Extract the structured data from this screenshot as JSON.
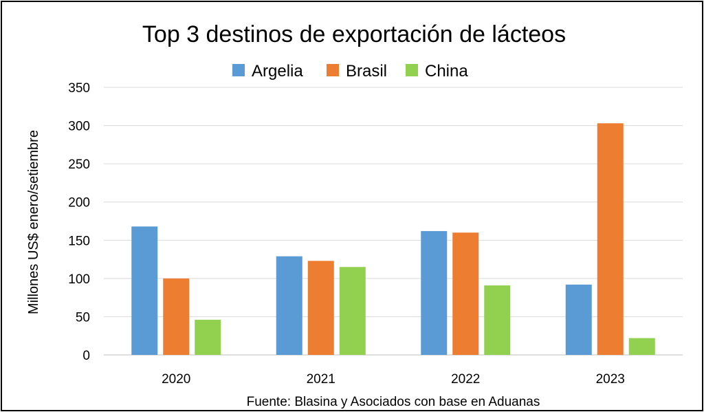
{
  "chart_data": {
    "type": "bar",
    "title": "Top 3 destinos de exportación de lácteos",
    "ylabel": "Millones US$ enero/setiembre",
    "xlabel": "",
    "ylim": [
      0,
      350
    ],
    "yticks": [
      0,
      50,
      100,
      150,
      200,
      250,
      300,
      350
    ],
    "grid": true,
    "legend_position": "top",
    "categories": [
      "2020",
      "2021",
      "2022",
      "2023"
    ],
    "series": [
      {
        "name": "Argelia",
        "color": "#5B9BD5",
        "values": [
          168,
          129,
          162,
          92
        ]
      },
      {
        "name": "Brasil",
        "color": "#ED7D31",
        "values": [
          100,
          123,
          160,
          303
        ]
      },
      {
        "name": "China",
        "color": "#92D050",
        "values": [
          46,
          115,
          91,
          22
        ]
      }
    ],
    "source": "Fuente: Blasina y Asociados con base en Aduanas"
  }
}
